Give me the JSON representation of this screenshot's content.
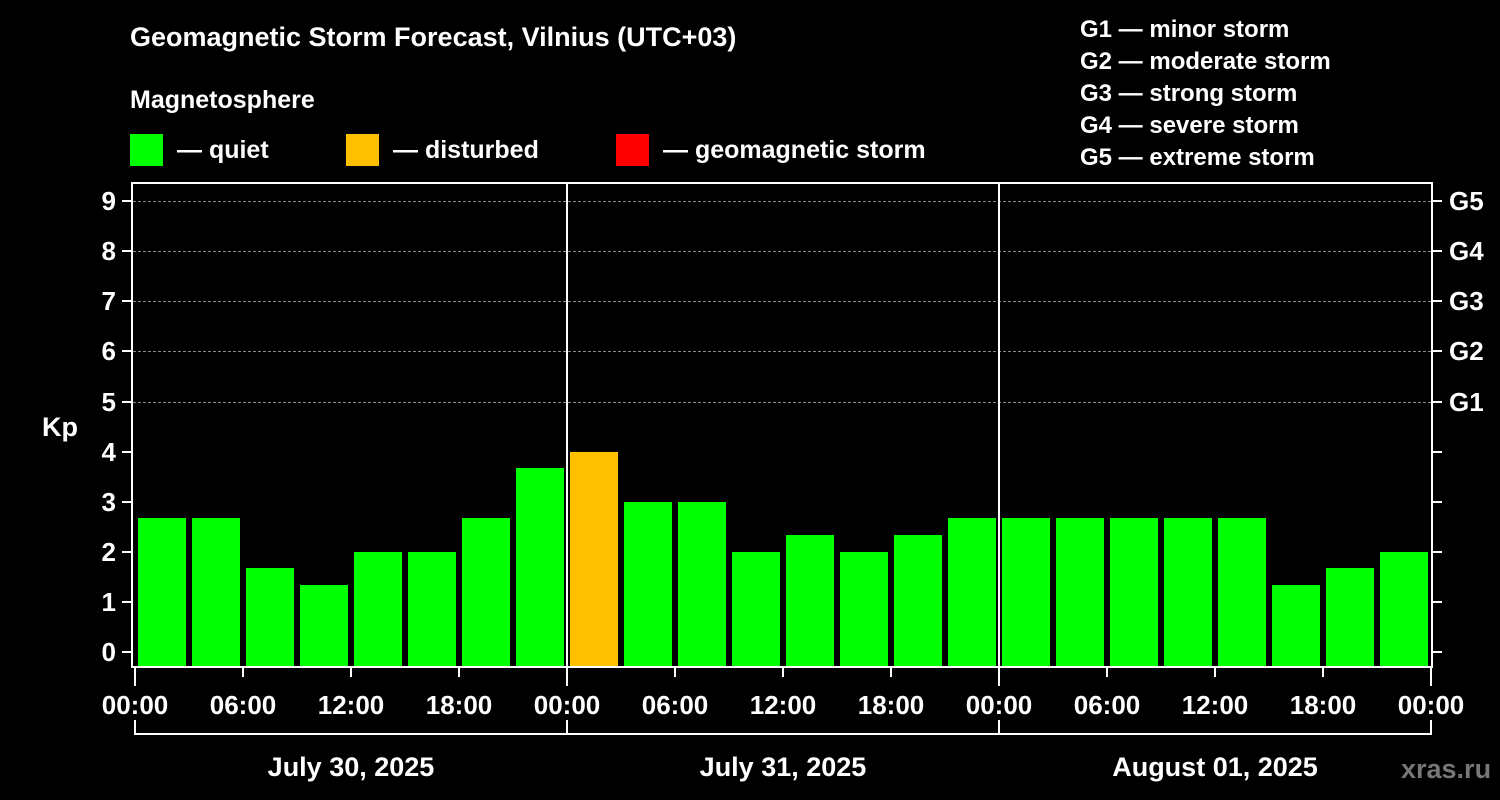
{
  "title": "Geomagnetic Storm Forecast, Vilnius (UTC+03)",
  "subtitle": "Magnetosphere",
  "legend": [
    {
      "label": "— quiet",
      "color": "#00ff00"
    },
    {
      "label": "— disturbed",
      "color": "#ffc000"
    },
    {
      "label": "— geomagnetic storm",
      "color": "#ff0000"
    }
  ],
  "g_legend": [
    "G1 — minor storm",
    "G2 — moderate storm",
    "G3 — strong storm",
    "G4 — severe storm",
    "G5 — extreme storm"
  ],
  "y_axis_label": "Kp",
  "watermark": "xras.ru",
  "chart_data": {
    "type": "bar",
    "title": "Geomagnetic Storm Forecast, Vilnius (UTC+03)",
    "xlabel": "",
    "ylabel": "Kp",
    "ylim": [
      0,
      9
    ],
    "y_ticks": [
      0,
      1,
      2,
      3,
      4,
      5,
      6,
      7,
      8,
      9
    ],
    "right_axis_ticks": [
      {
        "kp": 5,
        "label": "G1"
      },
      {
        "kp": 6,
        "label": "G2"
      },
      {
        "kp": 7,
        "label": "G3"
      },
      {
        "kp": 8,
        "label": "G4"
      },
      {
        "kp": 9,
        "label": "G5"
      }
    ],
    "grid": "dashed horizontal at Kp 5-9",
    "x_tick_labels": [
      "00:00",
      "06:00",
      "12:00",
      "18:00",
      "00:00",
      "06:00",
      "12:00",
      "18:00",
      "00:00",
      "06:00",
      "12:00",
      "18:00",
      "00:00"
    ],
    "days": [
      "July 30, 2025",
      "July 31, 2025",
      "August 01, 2025"
    ],
    "categories": [
      "Jul 30 00-03",
      "Jul 30 03-06",
      "Jul 30 06-09",
      "Jul 30 09-12",
      "Jul 30 12-15",
      "Jul 30 15-18",
      "Jul 30 18-21",
      "Jul 30 21-24",
      "Jul 31 00-03",
      "Jul 31 03-06",
      "Jul 31 06-09",
      "Jul 31 09-12",
      "Jul 31 12-15",
      "Jul 31 15-18",
      "Jul 31 18-21",
      "Jul 31 21-24",
      "Aug 01 00-03",
      "Aug 01 03-06",
      "Aug 01 06-09",
      "Aug 01 09-12",
      "Aug 01 12-15",
      "Aug 01 15-18",
      "Aug 01 18-21",
      "Aug 01 21-24"
    ],
    "values": [
      2.67,
      2.67,
      1.67,
      1.33,
      2.0,
      2.0,
      2.67,
      3.67,
      4.0,
      3.0,
      3.0,
      2.0,
      2.33,
      2.0,
      2.33,
      2.67,
      2.67,
      2.67,
      2.67,
      2.67,
      2.67,
      1.33,
      1.67,
      2.0
    ],
    "status": [
      "quiet",
      "quiet",
      "quiet",
      "quiet",
      "quiet",
      "quiet",
      "quiet",
      "quiet",
      "disturbed",
      "quiet",
      "quiet",
      "quiet",
      "quiet",
      "quiet",
      "quiet",
      "quiet",
      "quiet",
      "quiet",
      "quiet",
      "quiet",
      "quiet",
      "quiet",
      "quiet",
      "quiet"
    ],
    "colors": {
      "quiet": "#00ff00",
      "disturbed": "#ffc000",
      "storm": "#ff0000"
    }
  }
}
